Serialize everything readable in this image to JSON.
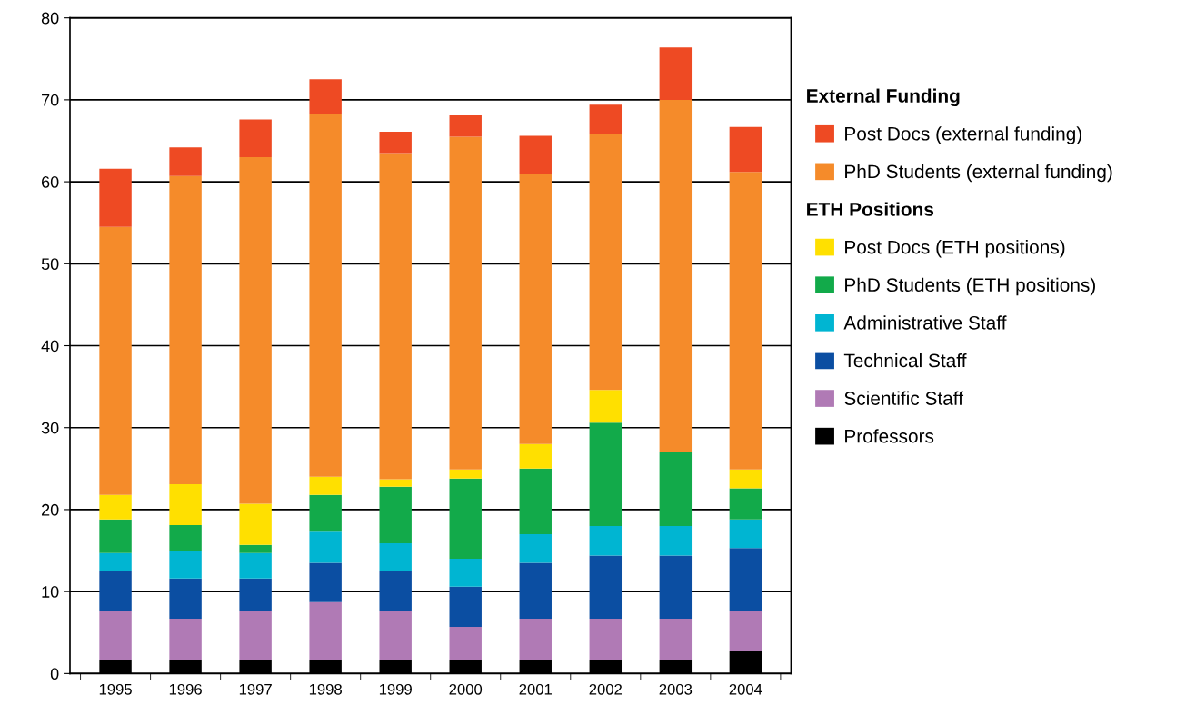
{
  "chart_data": {
    "type": "bar",
    "stacked": true,
    "categories": [
      "1995",
      "1996",
      "1997",
      "1998",
      "1999",
      "2000",
      "2001",
      "2002",
      "2003",
      "2004"
    ],
    "series": [
      {
        "name": "Professors",
        "color": "#000000",
        "values": [
          1.7,
          1.7,
          1.7,
          1.7,
          1.7,
          1.7,
          1.7,
          1.7,
          1.7,
          2.7
        ]
      },
      {
        "name": "Scientific Staff",
        "color": "#b07ab5",
        "values": [
          6.0,
          5.0,
          6.0,
          7.0,
          6.0,
          4.0,
          5.0,
          5.0,
          5.0,
          5.0
        ]
      },
      {
        "name": "Technical Staff",
        "color": "#0b4ea2",
        "values": [
          4.8,
          4.9,
          3.9,
          4.8,
          4.8,
          4.9,
          6.8,
          7.7,
          7.7,
          7.6
        ]
      },
      {
        "name": "Administrative Staff",
        "color": "#00b5d2",
        "values": [
          2.2,
          3.4,
          3.1,
          3.8,
          3.4,
          3.4,
          3.5,
          3.6,
          3.6,
          3.5
        ]
      },
      {
        "name": "PhD Students (ETH positions)",
        "color": "#12aa4a",
        "values": [
          4.1,
          3.1,
          1.0,
          4.5,
          6.9,
          9.8,
          8.0,
          12.6,
          9.0,
          3.8
        ]
      },
      {
        "name": "Post Docs (ETH positions)",
        "color": "#ffe000",
        "values": [
          3.0,
          5.0,
          5.0,
          2.2,
          0.9,
          1.1,
          3.0,
          4.0,
          0,
          2.3
        ]
      },
      {
        "name": "PhD Students (external funding)",
        "color": "#f58b2a",
        "values": [
          32.7,
          37.6,
          42.3,
          44.2,
          39.8,
          40.6,
          33.0,
          31.2,
          43.0,
          36.3
        ]
      },
      {
        "name": "Post Docs (external funding)",
        "color": "#ee4a23",
        "values": [
          7.1,
          3.5,
          4.6,
          4.3,
          2.6,
          2.6,
          4.6,
          3.6,
          6.4,
          5.5
        ]
      }
    ],
    "annotations": [
      "External Funding",
      "ETH Positions"
    ],
    "ylim": [
      0,
      80
    ],
    "yticks": [
      0,
      10,
      20,
      30,
      40,
      50,
      60,
      70,
      80
    ],
    "grid": "y",
    "legend": "right"
  }
}
